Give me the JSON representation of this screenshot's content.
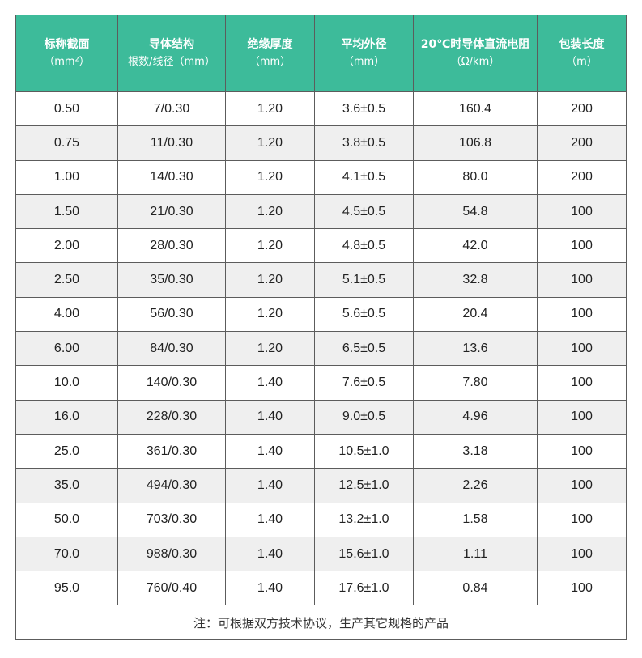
{
  "headers": [
    {
      "line1": "标称截面",
      "line2": "（mm²）"
    },
    {
      "line1": "导体结构",
      "line2": "根数/线径（mm）"
    },
    {
      "line1": "绝缘厚度",
      "line2": "（mm）"
    },
    {
      "line1": "平均外径",
      "line2": "（mm）"
    },
    {
      "line1": "20℃时导体直流电阻",
      "line2": "（Ω/km）"
    },
    {
      "line1": "包装长度",
      "line2": "（m）"
    }
  ],
  "rows": [
    [
      "0.50",
      "7/0.30",
      "1.20",
      "3.6±0.5",
      "160.4",
      "200"
    ],
    [
      "0.75",
      "11/0.30",
      "1.20",
      "3.8±0.5",
      "106.8",
      "200"
    ],
    [
      "1.00",
      "14/0.30",
      "1.20",
      "4.1±0.5",
      "80.0",
      "200"
    ],
    [
      "1.50",
      "21/0.30",
      "1.20",
      "4.5±0.5",
      "54.8",
      "100"
    ],
    [
      "2.00",
      "28/0.30",
      "1.20",
      "4.8±0.5",
      "42.0",
      "100"
    ],
    [
      "2.50",
      "35/0.30",
      "1.20",
      "5.1±0.5",
      "32.8",
      "100"
    ],
    [
      "4.00",
      "56/0.30",
      "1.20",
      "5.6±0.5",
      "20.4",
      "100"
    ],
    [
      "6.00",
      "84/0.30",
      "1.20",
      "6.5±0.5",
      "13.6",
      "100"
    ],
    [
      "10.0",
      "140/0.30",
      "1.40",
      "7.6±0.5",
      "7.80",
      "100"
    ],
    [
      "16.0",
      "228/0.30",
      "1.40",
      "9.0±0.5",
      "4.96",
      "100"
    ],
    [
      "25.0",
      "361/0.30",
      "1.40",
      "10.5±1.0",
      "3.18",
      "100"
    ],
    [
      "35.0",
      "494/0.30",
      "1.40",
      "12.5±1.0",
      "2.26",
      "100"
    ],
    [
      "50.0",
      "703/0.30",
      "1.40",
      "13.2±1.0",
      "1.58",
      "100"
    ],
    [
      "70.0",
      "988/0.30",
      "1.40",
      "15.6±1.0",
      "1.11",
      "100"
    ],
    [
      "95.0",
      "760/0.40",
      "1.40",
      "17.6±1.0",
      "0.84",
      "100"
    ]
  ],
  "note": "注：可根据双方技术协议，生产其它规格的产品",
  "colors": {
    "header_bg": "#3dbb9a",
    "header_text": "#ffffff",
    "alt_row_bg": "#efefef",
    "border": "#5c5c5c"
  }
}
